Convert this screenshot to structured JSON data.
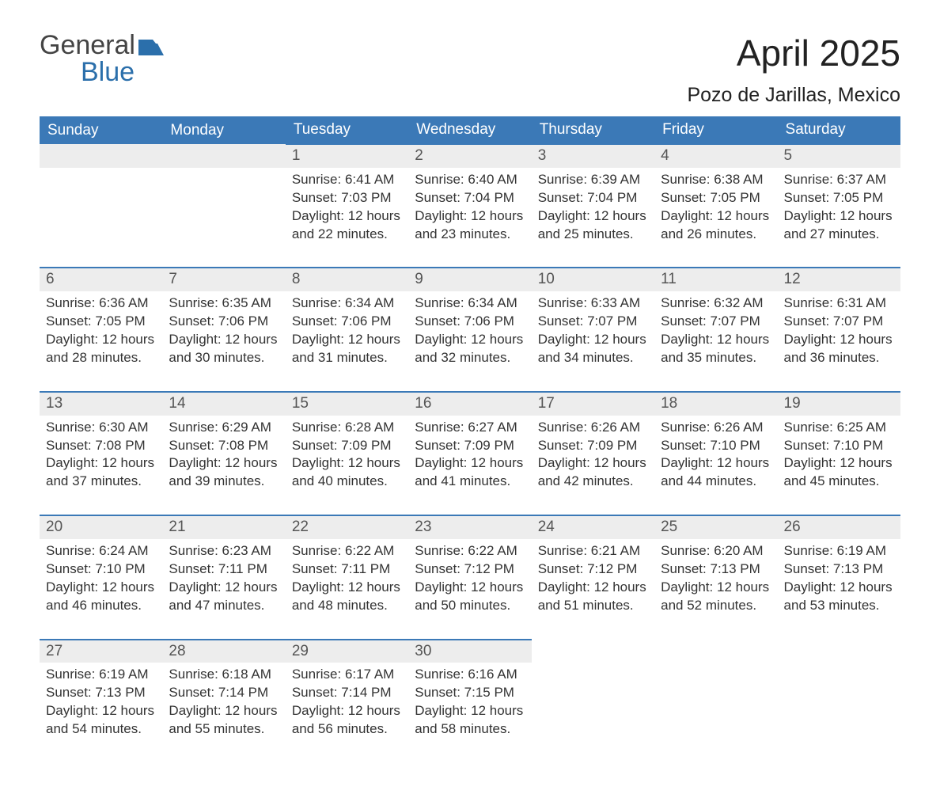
{
  "logo": {
    "word1": "General",
    "word2": "Blue",
    "text_color": "#444444",
    "accent_color": "#2b6fab"
  },
  "title": "April 2025",
  "subtitle": "Pozo de Jarillas, Mexico",
  "header_bg": "#3b79b7",
  "header_fg": "#ffffff",
  "daynum_bg": "#ededed",
  "daynum_border": "#3b79b7",
  "weekdays": [
    "Sunday",
    "Monday",
    "Tuesday",
    "Wednesday",
    "Thursday",
    "Friday",
    "Saturday"
  ],
  "labels": {
    "sunrise": "Sunrise:",
    "sunset": "Sunset:",
    "daylight": "Daylight:"
  },
  "weeks": [
    [
      null,
      null,
      {
        "n": "1",
        "sunrise": "6:41 AM",
        "sunset": "7:03 PM",
        "daylight": "12 hours and 22 minutes."
      },
      {
        "n": "2",
        "sunrise": "6:40 AM",
        "sunset": "7:04 PM",
        "daylight": "12 hours and 23 minutes."
      },
      {
        "n": "3",
        "sunrise": "6:39 AM",
        "sunset": "7:04 PM",
        "daylight": "12 hours and 25 minutes."
      },
      {
        "n": "4",
        "sunrise": "6:38 AM",
        "sunset": "7:05 PM",
        "daylight": "12 hours and 26 minutes."
      },
      {
        "n": "5",
        "sunrise": "6:37 AM",
        "sunset": "7:05 PM",
        "daylight": "12 hours and 27 minutes."
      }
    ],
    [
      {
        "n": "6",
        "sunrise": "6:36 AM",
        "sunset": "7:05 PM",
        "daylight": "12 hours and 28 minutes."
      },
      {
        "n": "7",
        "sunrise": "6:35 AM",
        "sunset": "7:06 PM",
        "daylight": "12 hours and 30 minutes."
      },
      {
        "n": "8",
        "sunrise": "6:34 AM",
        "sunset": "7:06 PM",
        "daylight": "12 hours and 31 minutes."
      },
      {
        "n": "9",
        "sunrise": "6:34 AM",
        "sunset": "7:06 PM",
        "daylight": "12 hours and 32 minutes."
      },
      {
        "n": "10",
        "sunrise": "6:33 AM",
        "sunset": "7:07 PM",
        "daylight": "12 hours and 34 minutes."
      },
      {
        "n": "11",
        "sunrise": "6:32 AM",
        "sunset": "7:07 PM",
        "daylight": "12 hours and 35 minutes."
      },
      {
        "n": "12",
        "sunrise": "6:31 AM",
        "sunset": "7:07 PM",
        "daylight": "12 hours and 36 minutes."
      }
    ],
    [
      {
        "n": "13",
        "sunrise": "6:30 AM",
        "sunset": "7:08 PM",
        "daylight": "12 hours and 37 minutes."
      },
      {
        "n": "14",
        "sunrise": "6:29 AM",
        "sunset": "7:08 PM",
        "daylight": "12 hours and 39 minutes."
      },
      {
        "n": "15",
        "sunrise": "6:28 AM",
        "sunset": "7:09 PM",
        "daylight": "12 hours and 40 minutes."
      },
      {
        "n": "16",
        "sunrise": "6:27 AM",
        "sunset": "7:09 PM",
        "daylight": "12 hours and 41 minutes."
      },
      {
        "n": "17",
        "sunrise": "6:26 AM",
        "sunset": "7:09 PM",
        "daylight": "12 hours and 42 minutes."
      },
      {
        "n": "18",
        "sunrise": "6:26 AM",
        "sunset": "7:10 PM",
        "daylight": "12 hours and 44 minutes."
      },
      {
        "n": "19",
        "sunrise": "6:25 AM",
        "sunset": "7:10 PM",
        "daylight": "12 hours and 45 minutes."
      }
    ],
    [
      {
        "n": "20",
        "sunrise": "6:24 AM",
        "sunset": "7:10 PM",
        "daylight": "12 hours and 46 minutes."
      },
      {
        "n": "21",
        "sunrise": "6:23 AM",
        "sunset": "7:11 PM",
        "daylight": "12 hours and 47 minutes."
      },
      {
        "n": "22",
        "sunrise": "6:22 AM",
        "sunset": "7:11 PM",
        "daylight": "12 hours and 48 minutes."
      },
      {
        "n": "23",
        "sunrise": "6:22 AM",
        "sunset": "7:12 PM",
        "daylight": "12 hours and 50 minutes."
      },
      {
        "n": "24",
        "sunrise": "6:21 AM",
        "sunset": "7:12 PM",
        "daylight": "12 hours and 51 minutes."
      },
      {
        "n": "25",
        "sunrise": "6:20 AM",
        "sunset": "7:13 PM",
        "daylight": "12 hours and 52 minutes."
      },
      {
        "n": "26",
        "sunrise": "6:19 AM",
        "sunset": "7:13 PM",
        "daylight": "12 hours and 53 minutes."
      }
    ],
    [
      {
        "n": "27",
        "sunrise": "6:19 AM",
        "sunset": "7:13 PM",
        "daylight": "12 hours and 54 minutes."
      },
      {
        "n": "28",
        "sunrise": "6:18 AM",
        "sunset": "7:14 PM",
        "daylight": "12 hours and 55 minutes."
      },
      {
        "n": "29",
        "sunrise": "6:17 AM",
        "sunset": "7:14 PM",
        "daylight": "12 hours and 56 minutes."
      },
      {
        "n": "30",
        "sunrise": "6:16 AM",
        "sunset": "7:15 PM",
        "daylight": "12 hours and 58 minutes."
      },
      null,
      null,
      null
    ]
  ]
}
